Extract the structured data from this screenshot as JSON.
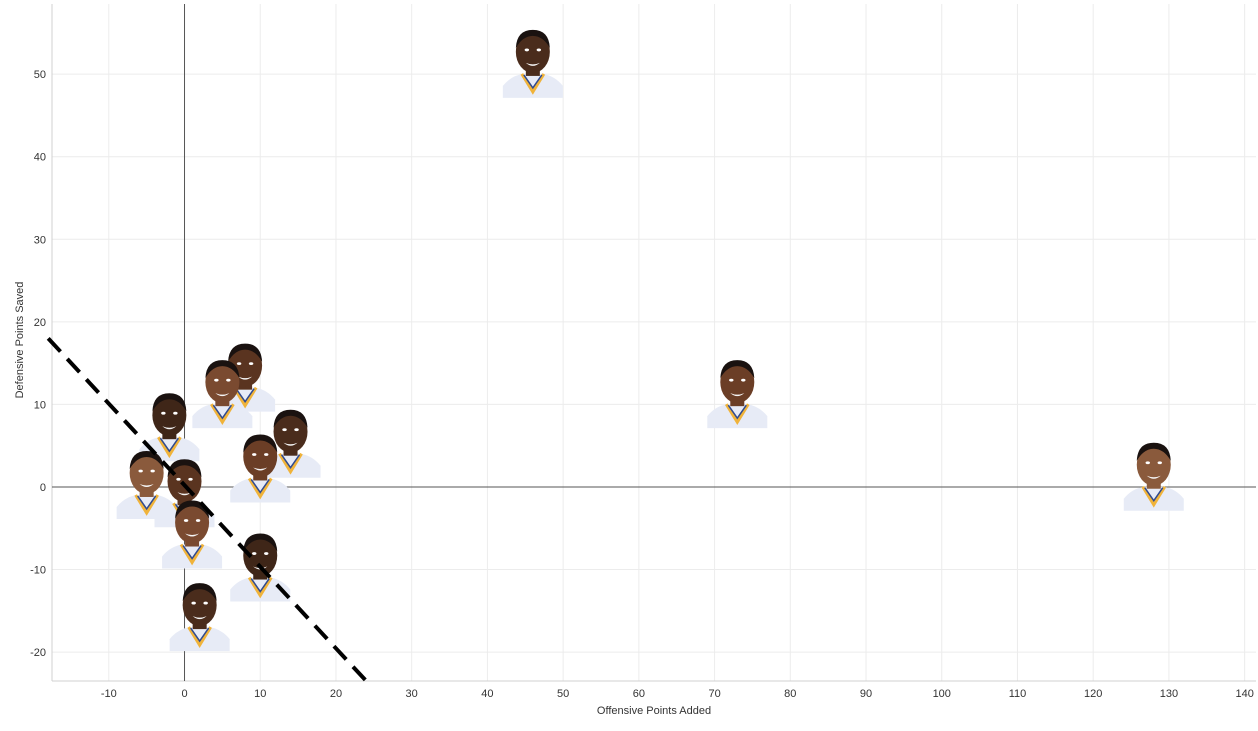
{
  "chart_data": {
    "type": "scatter",
    "title": "",
    "xlabel": "Offensive Points Added",
    "ylabel": "Defensive Points Saved",
    "xlim": [
      -17.5,
      141.5
    ],
    "ylim": [
      -23.5,
      58.5
    ],
    "x_ticks": [
      -10,
      0,
      10,
      20,
      30,
      40,
      50,
      60,
      70,
      80,
      90,
      100,
      110,
      120,
      130,
      140
    ],
    "y_ticks": [
      -20,
      -10,
      0,
      10,
      20,
      30,
      40,
      50
    ],
    "grid": true,
    "zero_lines": true,
    "marker": "player-headshot",
    "points": [
      {
        "x": 46,
        "y": 51
      },
      {
        "x": 73,
        "y": 11
      },
      {
        "x": 128,
        "y": 1
      },
      {
        "x": 8,
        "y": 13
      },
      {
        "x": 5,
        "y": 11
      },
      {
        "x": -2,
        "y": 7
      },
      {
        "x": 14,
        "y": 5
      },
      {
        "x": 10,
        "y": 2
      },
      {
        "x": -5,
        "y": 0
      },
      {
        "x": 0,
        "y": -1
      },
      {
        "x": 1,
        "y": -6
      },
      {
        "x": 10,
        "y": -10
      },
      {
        "x": 2,
        "y": -16
      }
    ],
    "trend_line": {
      "style": "dashed",
      "from": [
        -18,
        18
      ],
      "to": [
        24,
        -23.5
      ]
    }
  },
  "colors": {
    "grid": "#ececec",
    "zero_line": "#555555",
    "trend_line": "#000000",
    "jersey": "#e7ebf6",
    "jersey_trim": "#f0b33a",
    "jersey_blue": "#2f4a8f"
  }
}
